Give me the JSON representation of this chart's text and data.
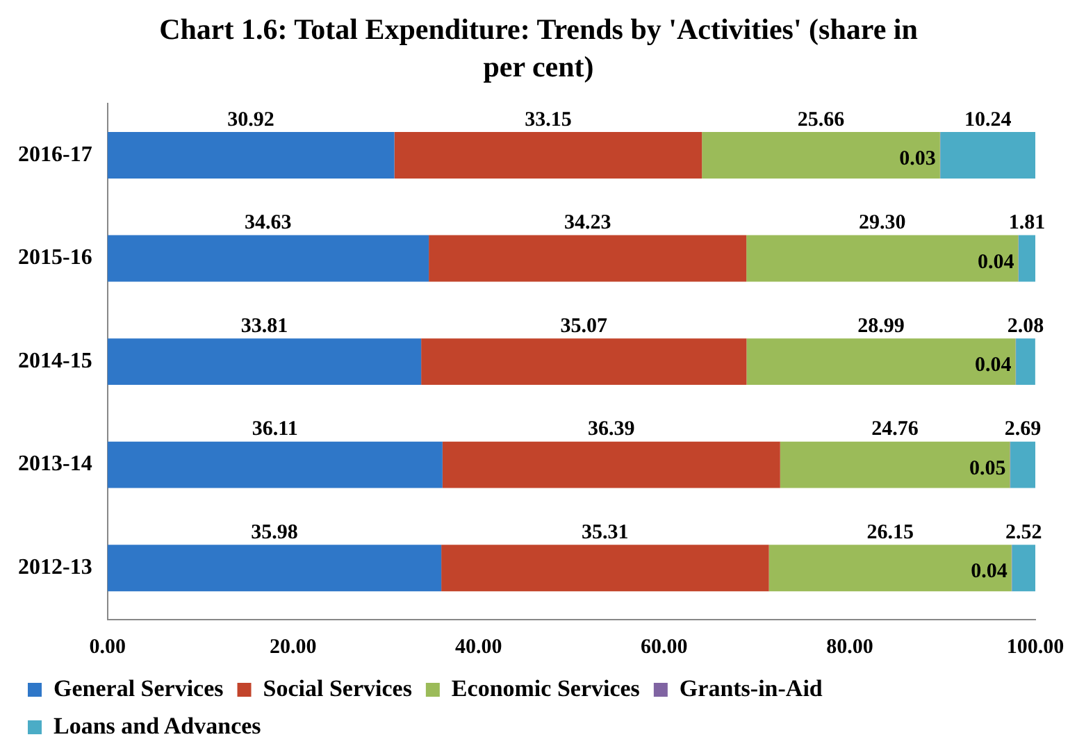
{
  "chart_data": {
    "type": "bar",
    "orientation": "horizontal",
    "stacked": true,
    "title": "Chart 1.6: Total Expenditure: Trends by 'Activities' (share in per cent)",
    "categories": [
      "2016-17",
      "2015-16",
      "2014-15",
      "2013-14",
      "2012-13"
    ],
    "series": [
      {
        "name": "General Services",
        "color": "#2f77c8",
        "values": [
          30.92,
          34.63,
          33.81,
          36.11,
          35.98
        ],
        "value_labels": [
          "30.92",
          "34.63",
          "33.81",
          "36.11",
          "35.98"
        ]
      },
      {
        "name": "Social Services",
        "color": "#c2442b",
        "values": [
          33.15,
          34.23,
          35.07,
          36.39,
          35.31
        ],
        "value_labels": [
          "33.15",
          "34.23",
          "35.07",
          "36.39",
          "35.31"
        ]
      },
      {
        "name": "Economic Services",
        "color": "#9bbb59",
        "values": [
          25.66,
          29.3,
          28.99,
          24.76,
          26.15
        ],
        "value_labels": [
          "25.66",
          "29.30",
          "28.99",
          "24.76",
          "26.15"
        ]
      },
      {
        "name": "Grants-in-Aid",
        "color": "#8064a2",
        "values": [
          0.03,
          0.04,
          0.04,
          0.05,
          0.04
        ],
        "value_labels": [
          "0.03",
          "0.04",
          "0.04",
          "0.05",
          "0.04"
        ]
      },
      {
        "name": "Loans and Advances",
        "color": "#4bacc6",
        "values": [
          10.24,
          1.81,
          2.08,
          2.69,
          2.52
        ],
        "value_labels": [
          "10.24",
          "1.81",
          "2.08",
          "2.69",
          "2.52"
        ]
      }
    ],
    "xlim": [
      0,
      100
    ],
    "xticks": [
      {
        "value": 0,
        "label": "0.00"
      },
      {
        "value": 20,
        "label": "20.00"
      },
      {
        "value": 40,
        "label": "40.00"
      },
      {
        "value": 60,
        "label": "60.00"
      },
      {
        "value": 80,
        "label": "80.00"
      },
      {
        "value": 100,
        "label": "100.00"
      }
    ],
    "grid": false,
    "legend": "bottom"
  }
}
